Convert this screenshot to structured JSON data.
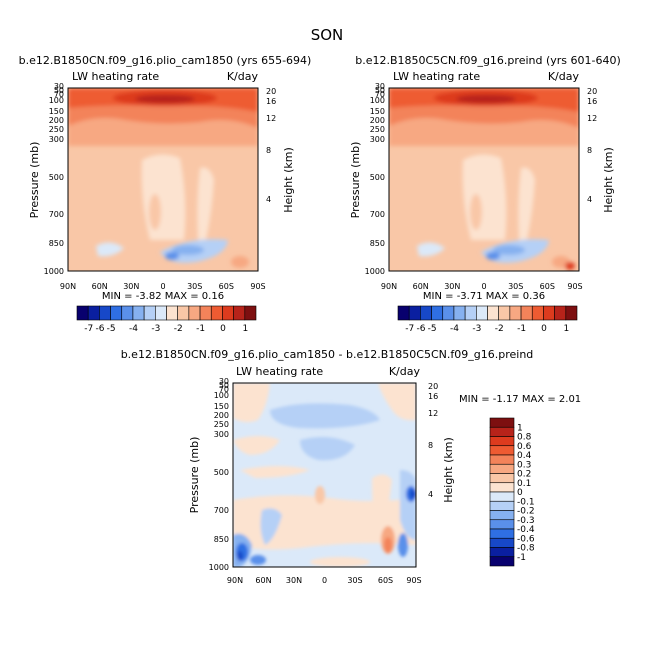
{
  "figure_title": "SON",
  "chart_data": [
    {
      "type": "heatmap",
      "title": "b.e12.B1850CN.f09_g16.plio_cam1850 (yrs 655-694)",
      "subtitle_left": "LW heating rate",
      "subtitle_right": "K/day",
      "xlabel": "",
      "ylabel": "Pressure (mb)",
      "ylabel_right": "Height (km)",
      "x_ticks": [
        "90N",
        "60N",
        "30N",
        "0",
        "30S",
        "60S",
        "90S"
      ],
      "y_ticks": [
        "1000",
        "850",
        "700",
        "500",
        "400",
        "300",
        "250",
        "200",
        "150",
        "100",
        "70",
        "50",
        "30"
      ],
      "y_right_ticks": [
        "4",
        "8",
        "12",
        "16",
        "20"
      ],
      "stats": "MIN = -3.82 MAX = 0.16",
      "colorbar_labels": [
        "-7",
        "-6",
        "-5",
        "-4",
        "-3",
        "-2",
        "-1",
        "0",
        "1"
      ]
    },
    {
      "type": "heatmap",
      "title": "b.e12.B1850C5CN.f09_g16.preind (yrs 601-640)",
      "subtitle_left": "LW heating rate",
      "subtitle_right": "K/day",
      "xlabel": "",
      "ylabel": "Pressure (mb)",
      "ylabel_right": "Height (km)",
      "x_ticks": [
        "90N",
        "60N",
        "30N",
        "0",
        "30S",
        "60S",
        "90S"
      ],
      "y_ticks": [
        "1000",
        "850",
        "700",
        "500",
        "400",
        "300",
        "250",
        "200",
        "150",
        "100",
        "70",
        "50",
        "30"
      ],
      "y_right_ticks": [
        "4",
        "8",
        "12",
        "16",
        "20"
      ],
      "stats": "MIN = -3.71 MAX = 0.36",
      "colorbar_labels": [
        "-7",
        "-6",
        "-5",
        "-4",
        "-3",
        "-2",
        "-1",
        "0",
        "1"
      ]
    },
    {
      "type": "heatmap",
      "title": "b.e12.B1850CN.f09_g16.plio_cam1850 - b.e12.B1850C5CN.f09_g16.preind",
      "subtitle_left": "LW heating rate",
      "subtitle_right": "K/day",
      "xlabel": "",
      "ylabel": "Pressure (mb)",
      "ylabel_right": "Height (km)",
      "x_ticks": [
        "90N",
        "60N",
        "30N",
        "0",
        "30S",
        "60S",
        "90S"
      ],
      "y_ticks": [
        "1000",
        "850",
        "700",
        "500",
        "400",
        "300",
        "250",
        "200",
        "150",
        "100",
        "70",
        "50",
        "30"
      ],
      "y_right_ticks": [
        "4",
        "8",
        "12",
        "16",
        "20"
      ],
      "stats": "MIN = -1.17 MAX = 2.01",
      "colorbar_labels": [
        "1",
        "0.8",
        "0.6",
        "0.4",
        "0.3",
        "0.2",
        "0.1",
        "0",
        "-0.1",
        "-0.2",
        "-0.3",
        "-0.4",
        "-0.6",
        "-0.8",
        "-1"
      ]
    }
  ],
  "colors": {
    "abs_scale": [
      "#08006e",
      "#0a1fa0",
      "#1748c8",
      "#2f6fe3",
      "#5a90ea",
      "#86b1f0",
      "#b5d0f6",
      "#dbe9f9",
      "#fce3d0",
      "#f9c7a7",
      "#f7a882",
      "#f3835a",
      "#ee5b32",
      "#dd3b1e",
      "#b7231a",
      "#7d0f10"
    ],
    "diff_scale": [
      "#7d0f10",
      "#b7231a",
      "#dd3b1e",
      "#ee5b32",
      "#f3835a",
      "#f7a882",
      "#f9c7a7",
      "#fce3d0",
      "#dbe9f9",
      "#b5d0f6",
      "#86b1f0",
      "#5a90ea",
      "#2f6fe3",
      "#1748c8",
      "#0a1fa0",
      "#08006e"
    ]
  }
}
